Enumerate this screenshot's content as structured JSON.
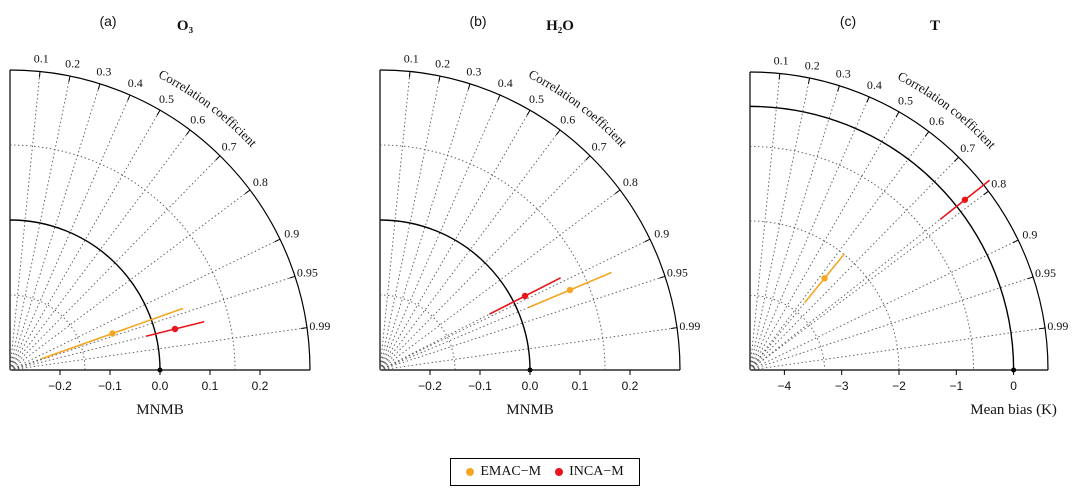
{
  "chart_data": [
    {
      "type": "scatter",
      "panel_label": "(a)",
      "title": "O₃",
      "xlabel": "MNMB",
      "arc_label": "Correlation coefficient",
      "xlim": [
        -0.3,
        0.3
      ],
      "x_ticks": [
        -0.2,
        -0.1,
        0.0,
        0.1,
        0.2
      ],
      "x_tick_labels": [
        "−0.2",
        "−0.1",
        "0.0",
        "0.1",
        "0.2"
      ],
      "correlation_ticks": [
        0.1,
        0.2,
        0.3,
        0.4,
        0.5,
        0.6,
        0.7,
        0.8,
        0.9,
        0.95,
        0.99
      ],
      "correlation_tick_labels": [
        "0.1",
        "0.2",
        "0.3",
        "0.4",
        "0.5",
        "0.6",
        "0.7",
        "0.8",
        "0.9",
        "0.95",
        "0.99"
      ],
      "reference_radius": 0.143,
      "points": [
        {
          "series": "EMAC−M",
          "x": -0.095,
          "r": 0.073,
          "err": 0.15
        },
        {
          "series": "INCA−M",
          "x": 0.03,
          "r": 0.082,
          "err": 0.06
        }
      ]
    },
    {
      "type": "scatter",
      "panel_label": "(b)",
      "title": "H₂O",
      "xlabel": "MNMB",
      "arc_label": "Correlation coefficient",
      "xlim": [
        -0.3,
        0.3
      ],
      "x_ticks": [
        -0.2,
        -0.1,
        0.0,
        0.1,
        0.2
      ],
      "x_tick_labels": [
        "−0.2",
        "−0.1",
        "0.0",
        "0.1",
        "0.2"
      ],
      "correlation_ticks": [
        0.1,
        0.2,
        0.3,
        0.4,
        0.5,
        0.6,
        0.7,
        0.8,
        0.9,
        0.95,
        0.99
      ],
      "correlation_tick_labels": [
        "0.1",
        "0.2",
        "0.3",
        "0.4",
        "0.5",
        "0.6",
        "0.7",
        "0.8",
        "0.9",
        "0.95",
        "0.99"
      ],
      "reference_radius": 0.143,
      "points": [
        {
          "series": "EMAC−M",
          "x": 0.08,
          "r": 0.16,
          "err": 0.09
        },
        {
          "series": "INCA−M",
          "x": -0.01,
          "r": 0.148,
          "err": 0.08
        }
      ]
    },
    {
      "type": "scatter",
      "panel_label": "(c)",
      "title": "T",
      "xlabel": "Mean bias (K)",
      "arc_label": "Correlation coefficient",
      "xlim": [
        -4.6,
        0.6
      ],
      "x_ticks": [
        -4,
        -3,
        -2,
        -1,
        0
      ],
      "x_tick_labels": [
        "−4",
        "−3",
        "−2",
        "−1",
        "0"
      ],
      "correlation_ticks": [
        0.1,
        0.2,
        0.3,
        0.4,
        0.5,
        0.6,
        0.7,
        0.8,
        0.9,
        0.95,
        0.99
      ],
      "correlation_tick_labels": [
        "0.1",
        "0.2",
        "0.3",
        "0.4",
        "0.5",
        "0.6",
        "0.7",
        "0.8",
        "0.9",
        "0.95",
        "0.99"
      ],
      "reference_radius": 2.5,
      "points": [
        {
          "series": "EMAC−M",
          "x": -3.3,
          "r": 1.6,
          "err": 0.55
        },
        {
          "series": "INCA−M",
          "x": -0.85,
          "r": 2.97,
          "err": 0.55
        }
      ]
    }
  ],
  "legend": {
    "placement": "bottom-center",
    "items": [
      {
        "label": "EMAC−M",
        "color": "#f5a623"
      },
      {
        "label": "INCA−M",
        "color": "#e8151b"
      }
    ]
  },
  "colors": {
    "EMAC−M": "#f5a623",
    "INCA−M": "#e8151b"
  }
}
